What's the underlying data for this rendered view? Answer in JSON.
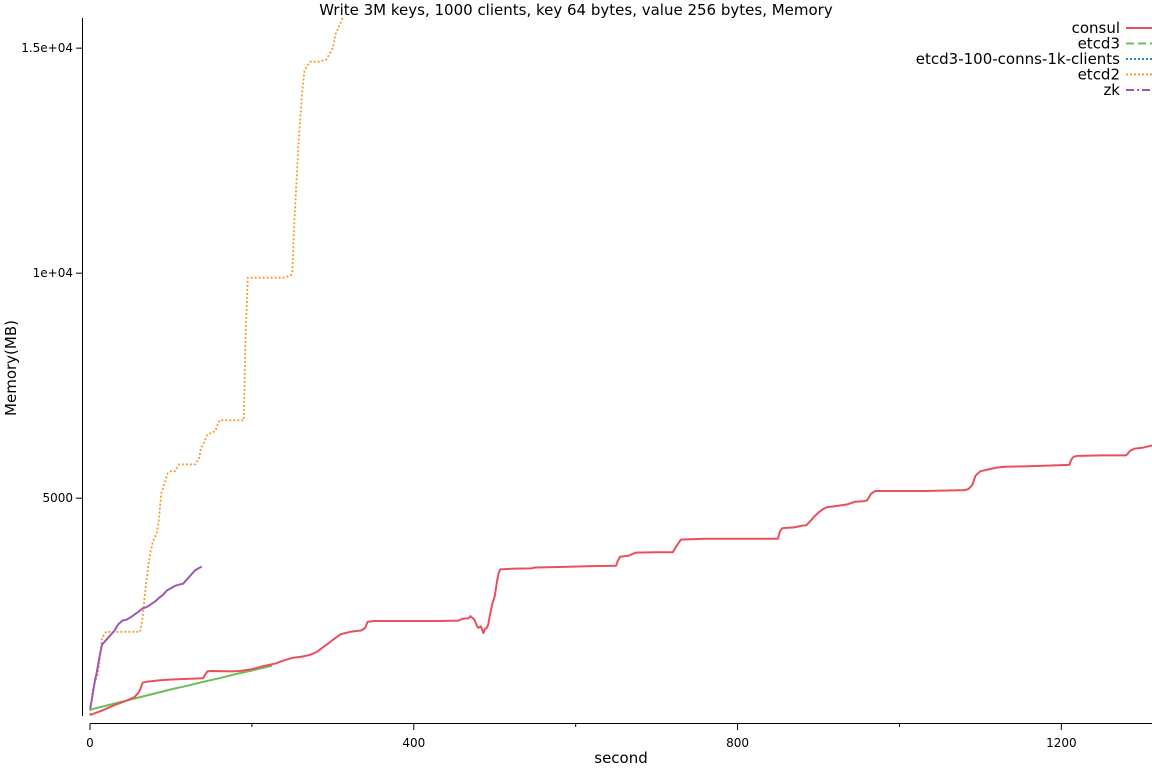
{
  "chart_data": {
    "type": "line",
    "title": "Write 3M keys, 1000 clients, key 64 bytes, value 256 bytes, Memory",
    "xlabel": "second",
    "ylabel": "Memory(MB)",
    "xlim": [
      0,
      1312
    ],
    "ylim": [
      160,
      15670
    ],
    "x_ticks": [
      0,
      400,
      800,
      1200
    ],
    "x_tick_labels": [
      "0",
      "400",
      "800",
      "1200"
    ],
    "x_minor_ticks": [
      200,
      600,
      1000
    ],
    "y_ticks": [
      5000,
      10000,
      15000
    ],
    "y_tick_labels": [
      "5000",
      "1e+04",
      "1.5e+04"
    ],
    "grid": false,
    "legend_position": "top-right",
    "series": [
      {
        "name": "consul",
        "color": "#e8505b",
        "style": "solid",
        "x": [
          0,
          15,
          30,
          45,
          55,
          60,
          62,
          65,
          70,
          85,
          100,
          140,
          142,
          145,
          150,
          175,
          185,
          200,
          210,
          220,
          230,
          240,
          250,
          262,
          272,
          280,
          285,
          295,
          300,
          310,
          322,
          330,
          335,
          340,
          343,
          350,
          380,
          410,
          430,
          455,
          460,
          468,
          470,
          475,
          478,
          480,
          483,
          486,
          488,
          490,
          492,
          494,
          497,
          500,
          503,
          505,
          507,
          510,
          520,
          545,
          550,
          580,
          620,
          650,
          652,
          655,
          665,
          670,
          675,
          700,
          720,
          725,
          730,
          760,
          800,
          850,
          852,
          855,
          860,
          870,
          880,
          885,
          890,
          895,
          900,
          905,
          908,
          910,
          920,
          935,
          945,
          955,
          960,
          965,
          970,
          980,
          1000,
          1030,
          1060,
          1080,
          1085,
          1090,
          1094,
          1100,
          1110,
          1120,
          1130,
          1160,
          1210,
          1212,
          1215,
          1220,
          1250,
          1280,
          1285,
          1290,
          1300,
          1312
        ],
        "y": [
          180,
          280,
          400,
          500,
          580,
          680,
          750,
          900,
          920,
          950,
          970,
          1000,
          1070,
          1150,
          1160,
          1150,
          1160,
          1200,
          1250,
          1290,
          1330,
          1400,
          1450,
          1480,
          1520,
          1580,
          1650,
          1780,
          1850,
          1980,
          2030,
          2050,
          2060,
          2120,
          2250,
          2270,
          2270,
          2270,
          2270,
          2280,
          2320,
          2330,
          2380,
          2300,
          2160,
          2120,
          2150,
          2000,
          2100,
          2110,
          2200,
          2400,
          2650,
          2820,
          3180,
          3350,
          3420,
          3420,
          3430,
          3440,
          3460,
          3470,
          3490,
          3500,
          3610,
          3700,
          3720,
          3760,
          3790,
          3800,
          3800,
          3950,
          4080,
          4100,
          4100,
          4100,
          4250,
          4330,
          4340,
          4350,
          4390,
          4400,
          4490,
          4600,
          4680,
          4750,
          4780,
          4800,
          4820,
          4860,
          4920,
          4930,
          4950,
          5100,
          5160,
          5160,
          5160,
          5160,
          5170,
          5180,
          5200,
          5290,
          5500,
          5600,
          5640,
          5680,
          5700,
          5710,
          5740,
          5850,
          5920,
          5940,
          5950,
          5950,
          6050,
          6100,
          6120,
          6170
        ]
      },
      {
        "name": "etcd3",
        "color": "#6bbf59",
        "style": "dashed",
        "x": [
          0,
          20,
          40,
          60,
          80,
          100,
          120,
          140,
          160,
          180,
          200,
          225
        ],
        "y": [
          300,
          390,
          480,
          570,
          660,
          750,
          830,
          920,
          1000,
          1090,
          1170,
          1280
        ]
      },
      {
        "name": "etcd3-100-conns-1k-clients",
        "color": "#2e86c1",
        "style": "dotted",
        "x": [],
        "y": []
      },
      {
        "name": "etcd2",
        "color": "#f39c34",
        "style": "dotted",
        "x": [
          0,
          3,
          6,
          10,
          12,
          15,
          20,
          30,
          50,
          62,
          65,
          68,
          72,
          75,
          78,
          82,
          85,
          88,
          96,
          100,
          105,
          110,
          120,
          130,
          135,
          137,
          140,
          145,
          150,
          155,
          158,
          160,
          162,
          165,
          170,
          180,
          190,
          192,
          195,
          200,
          210,
          220,
          230,
          240,
          248,
          250,
          252,
          255,
          258,
          262,
          265,
          268,
          272,
          278,
          283,
          292,
          300,
          303,
          308,
          312
        ],
        "y": [
          180,
          700,
          900,
          1100,
          1400,
          1900,
          2030,
          2030,
          2030,
          2030,
          2350,
          2900,
          3500,
          3820,
          4050,
          4200,
          4500,
          5100,
          5550,
          5600,
          5600,
          5750,
          5750,
          5750,
          5900,
          6100,
          6200,
          6420,
          6450,
          6500,
          6650,
          6730,
          6730,
          6730,
          6730,
          6730,
          6730,
          8500,
          9900,
          9900,
          9900,
          9900,
          9900,
          9900,
          9950,
          10050,
          11000,
          12000,
          13000,
          14000,
          14500,
          14600,
          14700,
          14700,
          14700,
          14750,
          15000,
          15300,
          15500,
          15670
        ]
      },
      {
        "name": "zk",
        "color": "#9b59b6",
        "style": "dashdot",
        "x": [
          0,
          3,
          6,
          8,
          10,
          12,
          15,
          20,
          25,
          30,
          35,
          40,
          45,
          50,
          60,
          65,
          70,
          80,
          85,
          90,
          95,
          100,
          105,
          110,
          115,
          120,
          125,
          130,
          135,
          138
        ],
        "y": [
          300,
          600,
          950,
          1100,
          1300,
          1500,
          1750,
          1850,
          1950,
          2050,
          2200,
          2280,
          2300,
          2350,
          2480,
          2550,
          2580,
          2700,
          2780,
          2850,
          2950,
          3000,
          3050,
          3080,
          3100,
          3200,
          3300,
          3400,
          3450,
          3480
        ]
      }
    ]
  }
}
